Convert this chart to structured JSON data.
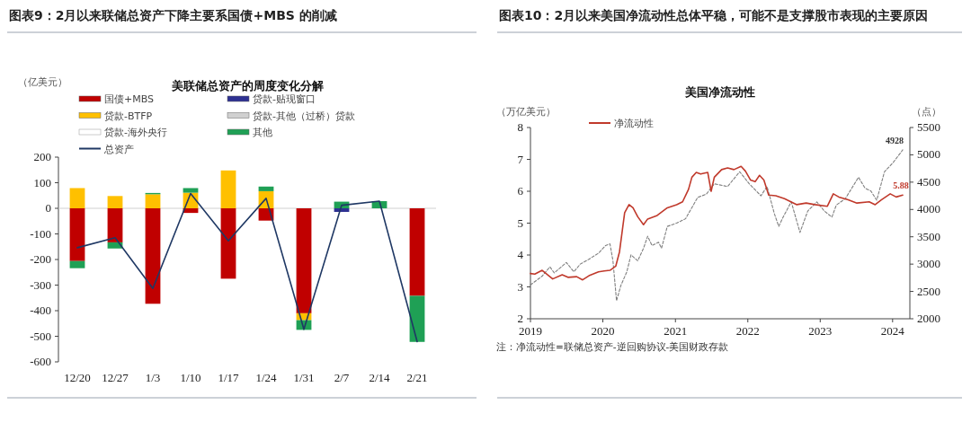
{
  "chart_data": [
    {
      "type": "bar",
      "title": "图表9：2月以来联储总资产下降主要系国债+MBS 的削减",
      "subtitle": "美联储总资产的周度变化分解",
      "ylabel": "（亿美元）",
      "categories": [
        "12/20",
        "12/27",
        "1/3",
        "1/10",
        "1/17",
        "1/24",
        "1/31",
        "2/7",
        "2/14",
        "2/21"
      ],
      "stacked": true,
      "ylim": [
        -600,
        200
      ],
      "yticks": [
        -600,
        -500,
        -400,
        -300,
        -200,
        -100,
        0,
        100,
        200
      ],
      "legend": "top",
      "series": [
        {
          "name": "国债+MBS",
          "color": "#c00000",
          "values": [
            -206,
            -133,
            -373,
            -18,
            -275,
            -48,
            -410,
            0,
            0,
            -342
          ]
        },
        {
          "name": "贷款-贴现窗口",
          "color": "#2e3192",
          "values": [
            0,
            0,
            0,
            0,
            0,
            0,
            0,
            -14,
            0,
            0
          ]
        },
        {
          "name": "贷款-BTFP",
          "color": "#ffc000",
          "values": [
            79,
            48,
            55,
            61,
            148,
            67,
            -27,
            0,
            0,
            0
          ]
        },
        {
          "name": "贷款-其他（过桥）贷款",
          "color": "#d0d0d0",
          "values": [
            0,
            0,
            0,
            0,
            0,
            0,
            0,
            0,
            0,
            0
          ]
        },
        {
          "name": "贷款-海外央行",
          "color": "#ffffff",
          "values": [
            0,
            0,
            0,
            0,
            0,
            0,
            0,
            0,
            0,
            0
          ]
        },
        {
          "name": "其他",
          "color": "#1fa055",
          "values": [
            -28,
            -24,
            5,
            18,
            0,
            18,
            -38,
            26,
            28,
            -180
          ]
        },
        {
          "name": "总资产",
          "type": "line",
          "color": "#1f3864",
          "values": [
            -154,
            -115,
            -313,
            58,
            -127,
            39,
            -473,
            12,
            28,
            -521
          ]
        }
      ]
    },
    {
      "type": "line",
      "title": "图表10：2月以来美国净流动性总体平稳，可能不是支撑股市表现的主要原因",
      "subtitle": "美国净流动性",
      "ylabel": "（万亿美元）",
      "y2label": "（点）",
      "xlim": [
        "2019-01-01",
        "2024-03-28"
      ],
      "xticks": [
        "2019",
        "2020",
        "2021",
        "2022",
        "2023",
        "2024"
      ],
      "ylim": [
        2,
        8
      ],
      "yticks": [
        2,
        3,
        4,
        5,
        6,
        7,
        8
      ],
      "y2lim": [
        2000,
        5500
      ],
      "y2ticks": [
        2000,
        2500,
        3000,
        3500,
        4000,
        4500,
        5000,
        5500
      ],
      "legend": "top",
      "annotations": [
        "4928",
        "注：净流动性=联储总资产-逆回购协议-美国财政存款"
      ],
      "series": [
        {
          "axis": "y2",
          "color": "#7f7f7f",
          "line_style": "dashed",
          "x": [
            "2019-01-01",
            "2019-03-01",
            "2019-04-09",
            "2019-05-01",
            "2019-07-01",
            "2019-08-08",
            "2019-09-09",
            "2019-10-23",
            "2019-12-10",
            "2020-01-15",
            "2020-02-06",
            "2020-02-21",
            "2020-03-10",
            "2020-04-01",
            "2020-05-01",
            "2020-05-22",
            "2020-06-25",
            "2020-07-24",
            "2020-08-14",
            "2020-09-05",
            "2020-10-08",
            "2020-10-23",
            "2020-11-21",
            "2021-01-07",
            "2021-02-21",
            "2021-04-23",
            "2021-06-06",
            "2021-07-16",
            "2021-09-21",
            "2021-11-21",
            "2022-01-08",
            "2022-02-07",
            "2022-03-08",
            "2022-04-08",
            "2022-05-15",
            "2022-06-06",
            "2022-06-28",
            "2022-08-08",
            "2022-09-21",
            "2022-10-30",
            "2022-12-15",
            "2023-01-22",
            "2023-03-01",
            "2023-03-23",
            "2023-05-08",
            "2023-07-13",
            "2023-08-15",
            "2023-09-13",
            "2023-10-13",
            "2023-11-21",
            "2024-01-04",
            "2024-02-21"
          ],
          "values": [
            2620,
            2780,
            2950,
            2840,
            3030,
            2860,
            3000,
            3090,
            3200,
            3340,
            3370,
            3060,
            2330,
            2610,
            2860,
            3170,
            3060,
            3290,
            3510,
            3340,
            3400,
            3290,
            3690,
            3750,
            3830,
            4220,
            4280,
            4470,
            4420,
            4690,
            4470,
            4360,
            4250,
            4420,
            3920,
            3690,
            3860,
            4140,
            3580,
            3970,
            4140,
            3970,
            3860,
            4080,
            4200,
            4590,
            4390,
            4340,
            4170,
            4690,
            4860,
            5090
          ]
        },
        {
          "name": "净流动性",
          "color": "#c0392b",
          "line_style": "solid",
          "x": [
            "2019-01-01",
            "2019-01-23",
            "2019-03-01",
            "2019-04-23",
            "2019-06-10",
            "2019-07-09",
            "2019-08-22",
            "2019-09-21",
            "2019-10-23",
            "2019-12-10",
            "2020-01-08",
            "2020-02-06",
            "2020-03-06",
            "2020-03-25",
            "2020-04-20",
            "2020-05-12",
            "2020-06-01",
            "2020-06-25",
            "2020-07-24",
            "2020-08-14",
            "2020-10-01",
            "2020-11-21",
            "2021-01-07",
            "2021-02-06",
            "2021-03-08",
            "2021-03-25",
            "2021-04-16",
            "2021-05-08",
            "2021-06-13",
            "2021-06-30",
            "2021-07-16",
            "2021-08-22",
            "2021-09-21",
            "2021-10-23",
            "2021-11-28",
            "2021-12-20",
            "2022-01-15",
            "2022-02-07",
            "2022-03-01",
            "2022-03-23",
            "2022-04-16",
            "2022-05-22",
            "2022-07-05",
            "2022-09-05",
            "2022-10-22",
            "2022-12-05",
            "2023-02-06",
            "2023-03-08",
            "2023-04-05",
            "2023-05-22",
            "2023-07-05",
            "2023-09-05",
            "2023-10-05",
            "2023-11-05",
            "2023-12-20",
            "2024-01-19",
            "2024-02-21"
          ],
          "values": [
            3.42,
            3.4,
            3.52,
            3.25,
            3.38,
            3.3,
            3.32,
            3.22,
            3.35,
            3.47,
            3.5,
            3.52,
            3.65,
            4.1,
            5.33,
            5.58,
            5.48,
            5.2,
            4.95,
            5.13,
            5.24,
            5.48,
            5.58,
            5.67,
            6.06,
            6.44,
            6.59,
            6.54,
            6.59,
            6.0,
            6.44,
            6.68,
            6.73,
            6.68,
            6.78,
            6.63,
            6.35,
            6.3,
            6.5,
            6.35,
            5.88,
            5.86,
            5.77,
            5.58,
            5.63,
            5.58,
            5.53,
            5.92,
            5.82,
            5.73,
            5.63,
            5.67,
            5.58,
            5.73,
            5.92,
            5.82,
            5.88
          ],
          "value_labels": [
            null,
            null,
            null,
            null,
            null,
            null,
            null,
            null,
            null,
            null,
            null,
            null,
            null,
            null,
            null,
            null,
            null,
            null,
            null,
            null,
            null,
            null,
            null,
            null,
            null,
            null,
            null,
            null,
            null,
            null,
            null,
            null,
            null,
            null,
            null,
            null,
            null,
            null,
            null,
            null,
            null,
            null,
            null,
            null,
            null,
            null,
            null,
            null,
            null,
            null,
            null,
            null,
            null,
            null,
            null,
            null,
            "5.88"
          ]
        }
      ]
    }
  ]
}
